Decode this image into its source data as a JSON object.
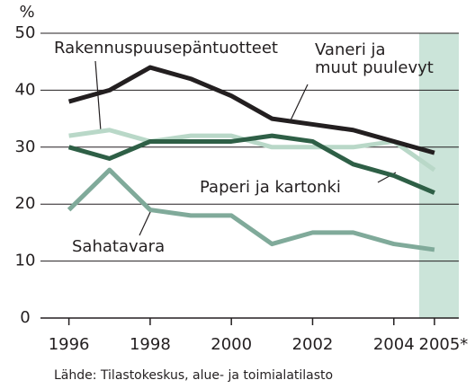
{
  "chart_data": {
    "type": "line",
    "y_label": "%",
    "source": "Lähde: Tilastokeskus, alue- ja toimialatilasto",
    "x": [
      1996,
      1997,
      1998,
      1999,
      2000,
      2001,
      2002,
      2003,
      2004,
      2005
    ],
    "series": [
      {
        "name": "Rakennuspuusepäntuotteet",
        "color": "#b9d8c8",
        "values": [
          32,
          33,
          31,
          32,
          32,
          30,
          30,
          30,
          31,
          26
        ]
      },
      {
        "name": "Sahatavara",
        "color": "#80aa9a",
        "values": [
          19,
          26,
          19,
          18,
          18,
          13,
          15,
          15,
          13,
          12
        ]
      },
      {
        "name": "Paperi ja kartonki",
        "color": "#2e5f46",
        "values": [
          30,
          28,
          31,
          31,
          31,
          32,
          31,
          27,
          25,
          22
        ]
      },
      {
        "name": "Vaneri ja\nmuut puulevyt",
        "color": "#231f20",
        "values": [
          38,
          40,
          44,
          42,
          39,
          35,
          34,
          33,
          31,
          29
        ]
      }
    ],
    "xlim": [
      1995.3,
      2005.6
    ],
    "xticks": [
      1996,
      1998,
      2000,
      2002,
      2004,
      {
        "value": 2005,
        "label": "2005*"
      }
    ],
    "ylim": [
      0,
      50
    ],
    "yticks": [
      0,
      10,
      20,
      30,
      40,
      50
    ],
    "grid": true
  }
}
